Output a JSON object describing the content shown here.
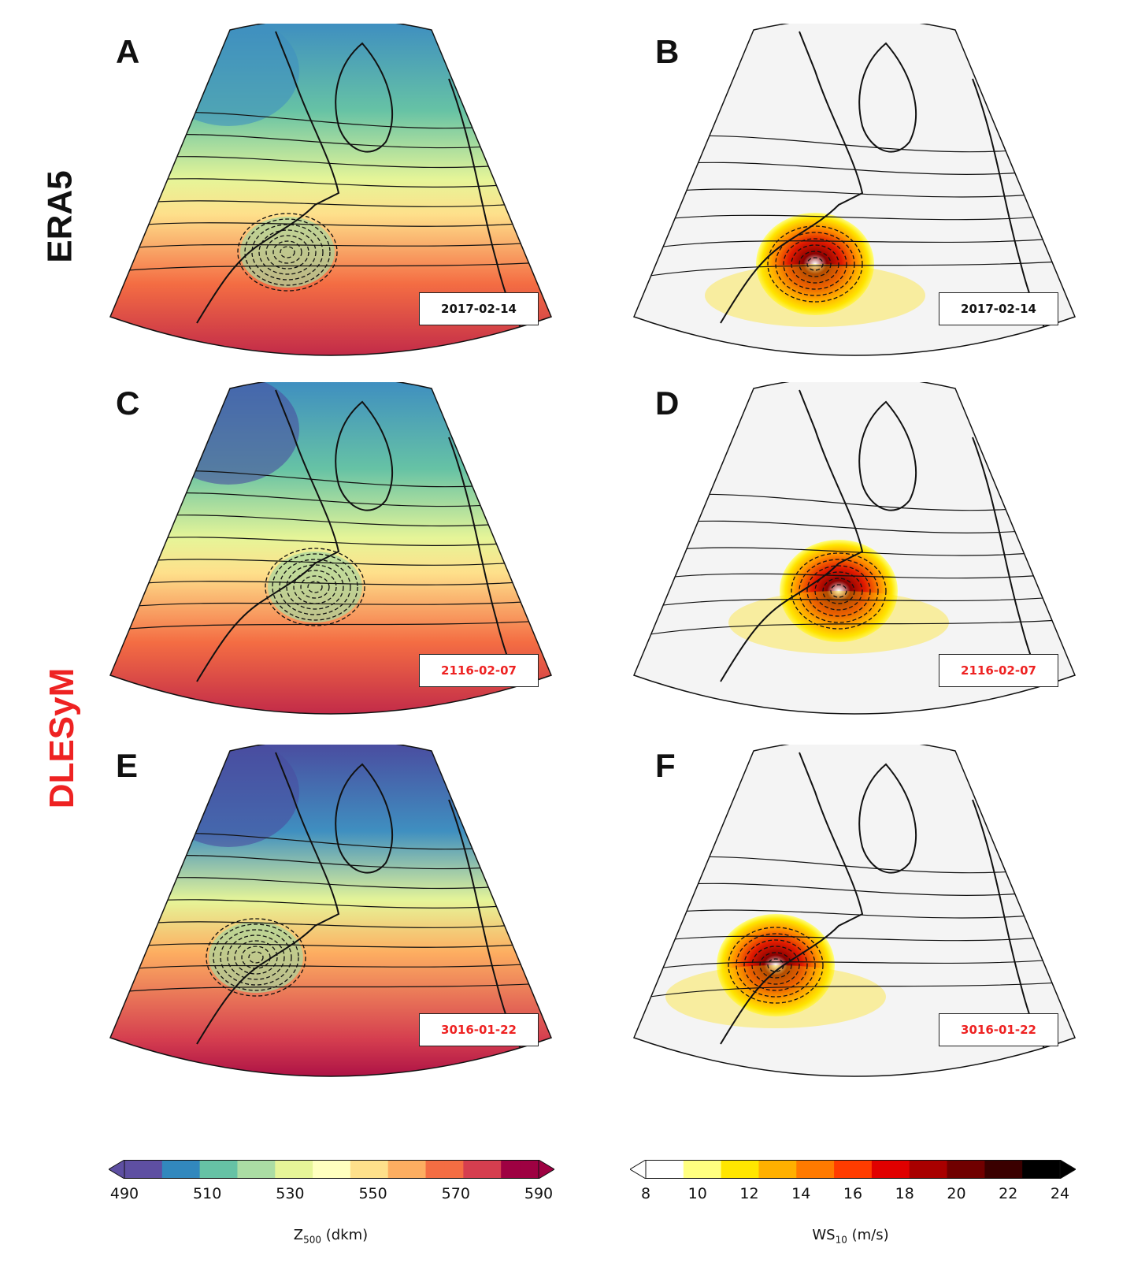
{
  "rows": [
    {
      "label": "ERA5",
      "color": "#111111"
    },
    {
      "label": "DLESyM",
      "color": "#ee2222"
    }
  ],
  "panels": [
    {
      "letter": "A",
      "field": "z500",
      "date": "2017-02-14",
      "date_color": "#111111"
    },
    {
      "letter": "B",
      "field": "ws10",
      "date": "2017-02-14",
      "date_color": "#111111"
    },
    {
      "letter": "C",
      "field": "z500",
      "date": "2116-02-07",
      "date_color": "#ee2222"
    },
    {
      "letter": "D",
      "field": "ws10",
      "date": "2116-02-07",
      "date_color": "#ee2222"
    },
    {
      "letter": "E",
      "field": "z500",
      "date": "3016-01-22",
      "date_color": "#ee2222"
    },
    {
      "letter": "F",
      "field": "ws10",
      "date": "3016-01-22",
      "date_color": "#ee2222"
    }
  ],
  "colorbars": {
    "z500": {
      "label_main": "Z",
      "label_sub": "500",
      "label_unit": " (dkm)",
      "ticks": [
        "490",
        "510",
        "530",
        "550",
        "570",
        "590"
      ],
      "range": [
        490,
        590
      ],
      "colormap": "Spectral_r"
    },
    "ws10": {
      "label_main": "WS",
      "label_sub": "10",
      "label_unit": " (m/s)",
      "ticks": [
        "8",
        "10",
        "12",
        "14",
        "16",
        "18",
        "20",
        "22",
        "24"
      ],
      "range": [
        8,
        24
      ],
      "colormap": "hot_r"
    }
  }
}
